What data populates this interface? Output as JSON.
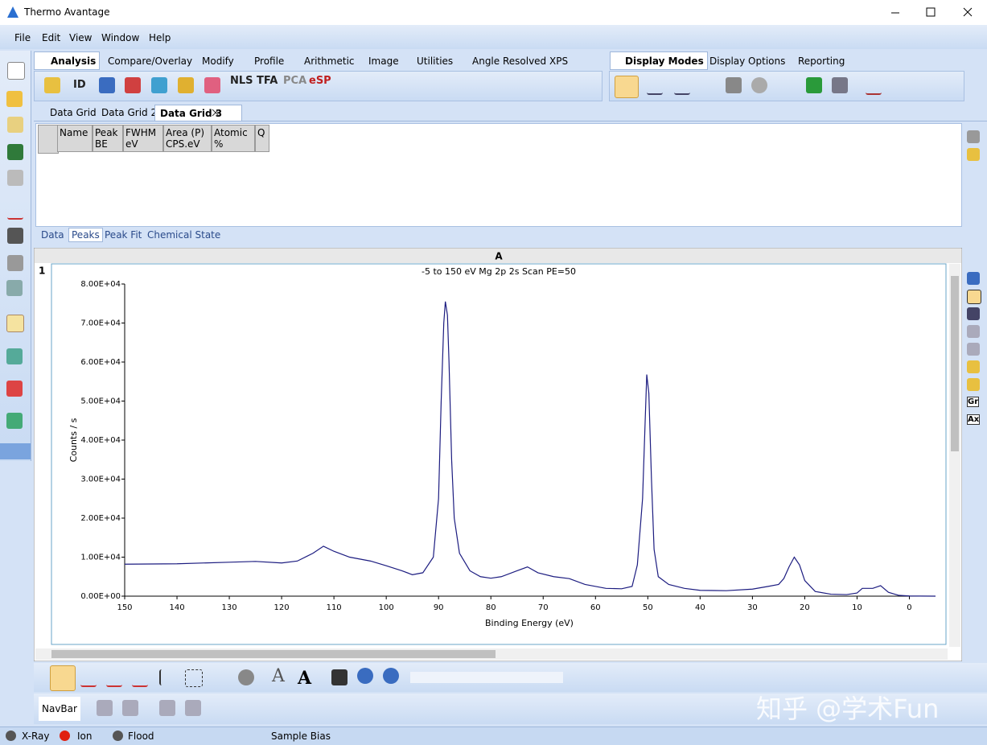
{
  "window": {
    "title": "Thermo Avantage"
  },
  "menu": [
    "File",
    "Edit",
    "View",
    "Window",
    "Help"
  ],
  "tabs": [
    "Analysis",
    "Compare/Overlay",
    "Modify",
    "Profile",
    "Arithmetic",
    "Image",
    "Utilities",
    "Angle Resolved XPS"
  ],
  "right_tabs": [
    "Display Modes",
    "Display Options",
    "Reporting"
  ],
  "toolbar_labels": [
    "ID",
    "NLS",
    "TFA",
    "PCA",
    "eSP"
  ],
  "grid_tabs": [
    "Data Grid",
    "Data Grid 2",
    "Data Grid 3"
  ],
  "table": {
    "headers": [
      [
        "Name"
      ],
      [
        "Peak",
        "BE"
      ],
      [
        "FWHM",
        "eV"
      ],
      [
        "Area (P)",
        "CPS.eV"
      ],
      [
        "Atomic",
        "%"
      ],
      [
        "Q"
      ]
    ]
  },
  "sub_tabs": [
    "Data",
    "Peaks",
    "Peak Fit",
    "Chemical State"
  ],
  "panel": {
    "column": "A",
    "row": "1"
  },
  "chart_data": {
    "type": "line",
    "title": "-5 to 150 eV Mg 2p 2s Scan PE=50",
    "x_label": "Binding Energy (eV)",
    "y_label": "Counts / s",
    "color": "#1c1c80",
    "x": [
      150,
      140,
      130,
      125,
      120,
      117,
      114,
      112,
      110,
      107,
      103,
      100,
      97,
      95,
      93,
      91,
      90,
      89.5,
      89,
      88.7,
      88.3,
      88,
      87.5,
      87,
      86,
      84,
      82,
      80,
      78,
      75,
      73,
      71,
      68,
      65,
      62,
      58,
      55,
      53,
      52,
      51,
      50.5,
      50.2,
      49.8,
      49.3,
      48.8,
      48,
      46,
      43,
      40,
      35,
      30,
      27,
      25,
      24,
      23,
      22,
      21,
      20,
      18,
      15,
      12,
      10,
      9,
      7,
      5.5,
      4,
      2,
      0,
      -5
    ],
    "values": [
      8200,
      8300,
      8700,
      8900,
      8500,
      9000,
      11000,
      12800,
      11500,
      10000,
      9000,
      7800,
      6500,
      5500,
      6000,
      10000,
      25000,
      50000,
      70000,
      75500,
      72000,
      60000,
      35000,
      20000,
      11000,
      6500,
      5000,
      4600,
      5000,
      6500,
      7500,
      6000,
      5000,
      4500,
      3000,
      2000,
      1900,
      2500,
      8000,
      25000,
      45000,
      56800,
      52000,
      30000,
      12000,
      5000,
      3000,
      2000,
      1500,
      1400,
      1800,
      2500,
      3000,
      4500,
      7500,
      10000,
      8000,
      4000,
      1200,
      500,
      400,
      800,
      2000,
      2000,
      2700,
      1000,
      200,
      50,
      0
    ],
    "xlim": [
      150,
      -5
    ],
    "xticks": [
      150,
      140,
      130,
      120,
      110,
      100,
      90,
      80,
      70,
      60,
      50,
      40,
      30,
      20,
      10,
      0
    ],
    "ylim": [
      0,
      80000
    ],
    "yticks": [
      {
        "value": 0,
        "label": "0.00E+00"
      },
      {
        "value": 10000,
        "label": "1.00E+04"
      },
      {
        "value": 20000,
        "label": "2.00E+04"
      },
      {
        "value": 30000,
        "label": "3.00E+04"
      },
      {
        "value": 40000,
        "label": "4.00E+04"
      },
      {
        "value": 50000,
        "label": "5.00E+04"
      },
      {
        "value": 60000,
        "label": "6.00E+04"
      },
      {
        "value": 70000,
        "label": "7.00E+04"
      },
      {
        "value": 80000,
        "label": "8.00E+04"
      }
    ]
  },
  "text_tools": [
    "A",
    "A"
  ],
  "side_icons": [
    "Gr",
    "Ax"
  ],
  "navbar": "NavBar",
  "status": [
    "X-Ray",
    "Ion",
    "Flood",
    "Sample Bias"
  ],
  "watermark": "知乎 @学术Fun"
}
